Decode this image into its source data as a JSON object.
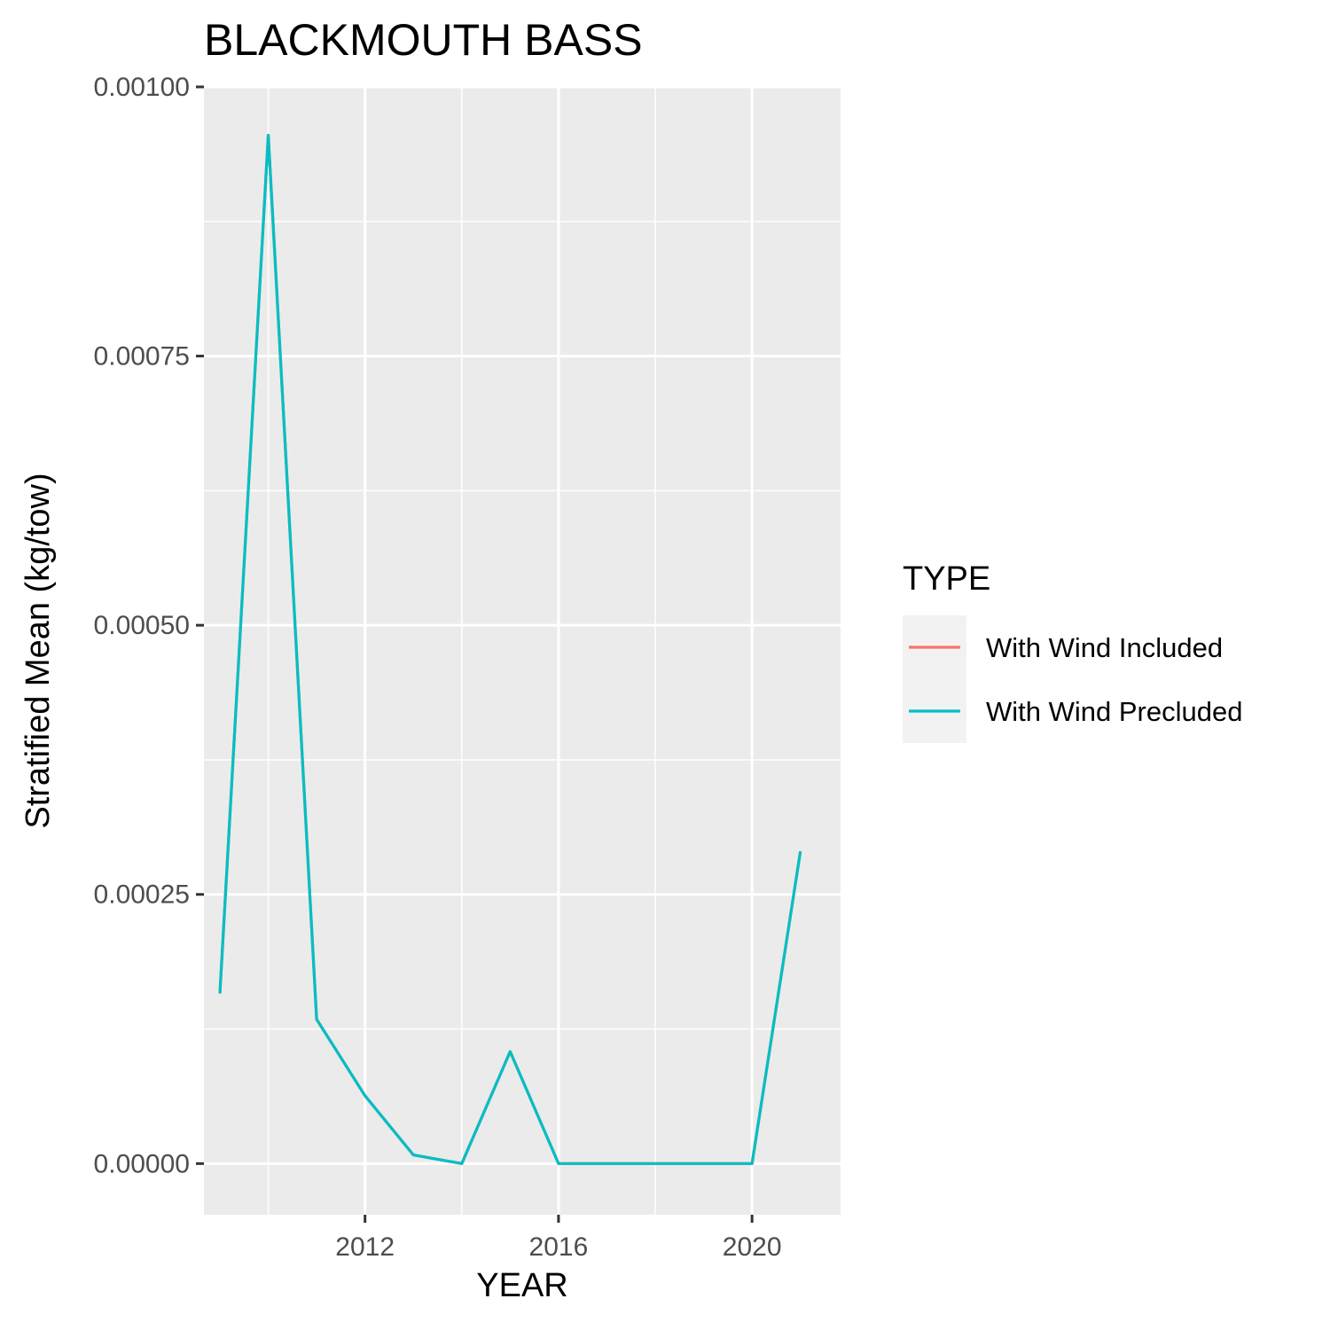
{
  "chart_data": {
    "type": "line",
    "title": "BLACKMOUTH BASS",
    "xlabel": "YEAR",
    "ylabel": "Stratified Mean (kg/tow)",
    "xlim": [
      2008.67,
      2021.83
    ],
    "ylim": [
      -4.75e-05,
      0.001
    ],
    "x_ticks": [
      2012,
      2016,
      2020
    ],
    "x_tick_labels": [
      "2012",
      "2016",
      "2020"
    ],
    "x_minor_ticks": [
      2010,
      2014,
      2018
    ],
    "y_ticks": [
      0,
      0.00025,
      0.0005,
      0.00075,
      0.001
    ],
    "y_tick_labels": [
      "0.00000",
      "0.00025",
      "0.00050",
      "0.00075",
      "0.00100"
    ],
    "y_minor_ticks": [
      0.000125,
      0.000375,
      0.000625,
      0.000875
    ],
    "grid": true,
    "panel_background": "#ebebeb",
    "legend": {
      "title": "TYPE",
      "placement": "right",
      "entries": [
        {
          "label": "With Wind Included",
          "color": "#f8766d"
        },
        {
          "label": "With Wind Precluded",
          "color": "#00bfc4"
        }
      ]
    },
    "series": [
      {
        "name": "With Wind Included",
        "color": "#f8766d",
        "x": [
          2009,
          2010,
          2011,
          2012,
          2013,
          2014,
          2015,
          2016,
          2017,
          2018,
          2019,
          2020,
          2021
        ],
        "y": [
          0.000158,
          0.000955,
          0.000134,
          6.3e-05,
          8e-06,
          0.0,
          0.000104,
          0.0,
          0.0,
          0.0,
          0.0,
          0.0,
          0.00029
        ]
      },
      {
        "name": "With Wind Precluded",
        "color": "#00bfc4",
        "x": [
          2009,
          2010,
          2011,
          2012,
          2013,
          2014,
          2015,
          2016,
          2017,
          2018,
          2019,
          2020,
          2021
        ],
        "y": [
          0.000158,
          0.000955,
          0.000134,
          6.3e-05,
          8e-06,
          0.0,
          0.000104,
          0.0,
          0.0,
          0.0,
          0.0,
          0.0,
          0.00029
        ]
      }
    ]
  }
}
